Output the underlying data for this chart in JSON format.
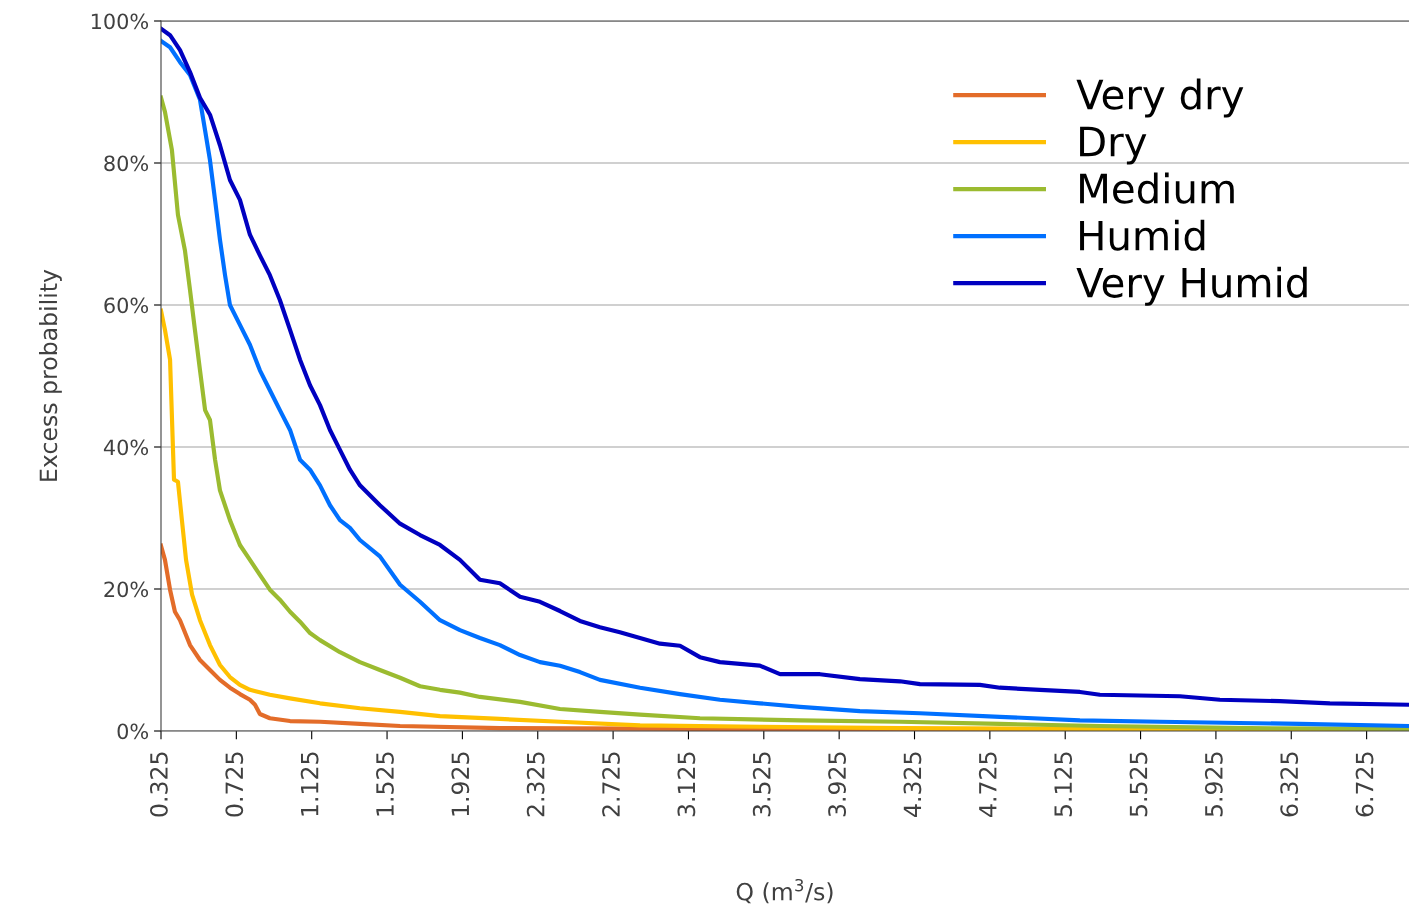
{
  "chart_data": {
    "type": "line",
    "xlabel": "Q (m$^{3}$/s)",
    "ylabel": "Excess probability",
    "xlim": [
      0.325,
      6.95
    ],
    "xticks": [
      0.325,
      0.725,
      1.125,
      1.525,
      1.925,
      2.325,
      2.725,
      3.125,
      3.525,
      3.925,
      4.325,
      4.725,
      5.125,
      5.525,
      5.925,
      6.325,
      6.725
    ],
    "ylim": [
      0,
      100
    ],
    "yticks": [
      {
        "value": 0,
        "label": "0%"
      },
      {
        "value": 20,
        "label": "20%"
      },
      {
        "value": 40,
        "label": "40%"
      },
      {
        "value": 60,
        "label": "60%"
      },
      {
        "value": 80,
        "label": "80%"
      },
      {
        "value": 100,
        "label": "100%"
      }
    ],
    "grid": "y",
    "legend": "top right",
    "marker": "none",
    "line_style": "solid",
    "series": [
      {
        "name": "Very dry",
        "color": "#e36c29",
        "x": [
          0.325,
          0.346,
          0.373,
          0.399,
          0.426,
          0.479,
          0.532,
          0.585,
          0.638,
          0.691,
          0.744,
          0.797,
          0.824,
          0.85,
          0.903,
          1.01,
          1.169,
          1.381,
          1.594,
          2.124,
          3.186,
          6.949
        ],
        "values": [
          26.1,
          24.1,
          19.9,
          16.8,
          15.6,
          12.1,
          10.0,
          8.6,
          7.2,
          6.1,
          5.2,
          4.4,
          3.7,
          2.4,
          1.8,
          1.4,
          1.3,
          1.0,
          0.7,
          0.4,
          0.3,
          0.1
        ]
      },
      {
        "name": "Dry",
        "color": "#ffc000",
        "x": [
          0.325,
          0.346,
          0.373,
          0.394,
          0.415,
          0.436,
          0.458,
          0.49,
          0.532,
          0.585,
          0.638,
          0.691,
          0.744,
          0.797,
          0.903,
          1.01,
          1.169,
          1.381,
          1.594,
          1.806,
          2.124,
          2.443,
          2.868,
          3.504,
          4.248,
          5.309,
          6.949
        ],
        "values": [
          59.2,
          56.5,
          52.3,
          35.4,
          35.1,
          29.7,
          24.1,
          19.2,
          15.6,
          12.1,
          9.3,
          7.6,
          6.5,
          5.8,
          5.1,
          4.6,
          3.9,
          3.2,
          2.7,
          2.1,
          1.7,
          1.3,
          0.8,
          0.6,
          0.4,
          0.3,
          0.1
        ]
      },
      {
        "name": "Medium",
        "color": "#9bbb30",
        "x": [
          0.325,
          0.346,
          0.383,
          0.415,
          0.452,
          0.479,
          0.505,
          0.532,
          0.559,
          0.585,
          0.612,
          0.638,
          0.691,
          0.744,
          0.797,
          0.85,
          0.903,
          0.956,
          1.01,
          1.063,
          1.116,
          1.169,
          1.275,
          1.381,
          1.487,
          1.594,
          1.7,
          1.806,
          1.912,
          2.018,
          2.231,
          2.443,
          2.655,
          2.868,
          3.186,
          3.717,
          4.248,
          4.778,
          5.309,
          6.105,
          6.949
        ],
        "values": [
          89.2,
          87.2,
          81.8,
          72.7,
          67.7,
          62.1,
          56.5,
          50.8,
          45.2,
          43.8,
          38.2,
          33.9,
          29.7,
          26.2,
          24.1,
          22.0,
          19.9,
          18.5,
          16.8,
          15.4,
          13.8,
          12.8,
          11.1,
          9.7,
          8.6,
          7.5,
          6.3,
          5.8,
          5.4,
          4.8,
          4.1,
          3.1,
          2.7,
          2.3,
          1.8,
          1.5,
          1.3,
          1.0,
          0.7,
          0.4,
          0.3
        ]
      },
      {
        "name": "Humid",
        "color": "#0070ff",
        "x": [
          0.325,
          0.373,
          0.426,
          0.479,
          0.532,
          0.559,
          0.585,
          0.612,
          0.638,
          0.665,
          0.691,
          0.744,
          0.797,
          0.85,
          0.903,
          0.956,
          1.01,
          1.063,
          1.116,
          1.169,
          1.222,
          1.275,
          1.328,
          1.381,
          1.487,
          1.594,
          1.7,
          1.806,
          1.912,
          2.018,
          2.124,
          2.231,
          2.337,
          2.443,
          2.549,
          2.655,
          2.868,
          3.08,
          3.292,
          3.504,
          3.717,
          4.035,
          4.354,
          4.778,
          5.203,
          5.628,
          6.37,
          6.949
        ],
        "values": [
          97.2,
          96.3,
          94.2,
          92.4,
          88.9,
          84.6,
          80.4,
          74.8,
          69.2,
          64.2,
          60.0,
          57.2,
          54.4,
          50.8,
          48.0,
          45.2,
          42.4,
          38.2,
          36.8,
          34.6,
          31.8,
          29.7,
          28.6,
          26.9,
          24.6,
          20.6,
          18.2,
          15.6,
          14.2,
          13.1,
          12.1,
          10.7,
          9.7,
          9.2,
          8.3,
          7.2,
          6.1,
          5.2,
          4.4,
          3.9,
          3.4,
          2.8,
          2.5,
          2.0,
          1.5,
          1.3,
          1.0,
          0.7
        ]
      },
      {
        "name": "Very Humid",
        "color": "#0000c0",
        "x": [
          0.325,
          0.373,
          0.426,
          0.479,
          0.532,
          0.585,
          0.638,
          0.691,
          0.744,
          0.797,
          0.85,
          0.903,
          0.956,
          1.01,
          1.063,
          1.116,
          1.169,
          1.222,
          1.275,
          1.328,
          1.381,
          1.434,
          1.487,
          1.594,
          1.7,
          1.806,
          1.912,
          2.018,
          2.124,
          2.231,
          2.337,
          2.443,
          2.549,
          2.655,
          2.761,
          2.974,
          3.08,
          3.186,
          3.292,
          3.504,
          3.611,
          3.823,
          4.035,
          4.248,
          4.354,
          4.672,
          4.778,
          4.991,
          5.203,
          5.309,
          5.734,
          5.946,
          6.264,
          6.53,
          6.949
        ],
        "values": [
          98.9,
          98.0,
          95.9,
          92.8,
          89.2,
          86.8,
          82.5,
          77.6,
          74.8,
          69.9,
          67.0,
          64.2,
          60.7,
          56.5,
          52.3,
          48.7,
          45.9,
          42.4,
          39.6,
          36.8,
          34.6,
          33.2,
          31.8,
          29.2,
          27.6,
          26.2,
          24.1,
          21.3,
          20.8,
          18.9,
          18.2,
          16.9,
          15.5,
          14.6,
          13.9,
          12.3,
          12.0,
          10.4,
          9.7,
          9.2,
          8.0,
          8.0,
          7.3,
          7.0,
          6.6,
          6.5,
          6.1,
          5.8,
          5.5,
          5.1,
          4.9,
          4.4,
          4.2,
          3.9,
          3.7
        ]
      }
    ]
  }
}
